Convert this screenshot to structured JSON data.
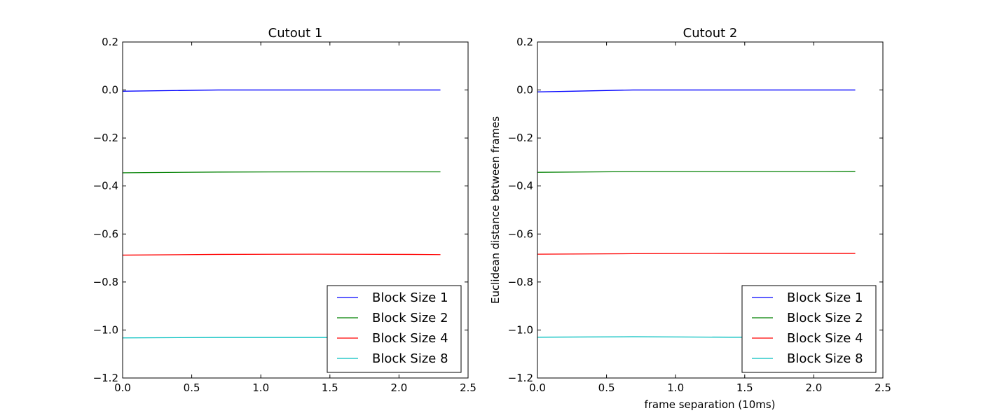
{
  "figure": {
    "xlabel": "frame separation (10ms)",
    "ylabel": "Euclidean distance between frames"
  },
  "chart_data": [
    {
      "type": "line",
      "title": "Cutout 1",
      "xlabel": "",
      "ylabel": "",
      "xlim": [
        0.0,
        2.5
      ],
      "ylim": [
        -1.2,
        0.2
      ],
      "xticks": [
        "0.0",
        "0.5",
        "1.0",
        "1.5",
        "2.0",
        "2.5"
      ],
      "yticks": [
        "0.2",
        "0.0",
        "−0.2",
        "−0.4",
        "−0.6",
        "−0.8",
        "−1.0",
        "−1.2"
      ],
      "grid": false,
      "legend": "lower-right",
      "x": [
        0.0,
        0.69,
        1.39,
        2.08,
        2.3
      ],
      "series": [
        {
          "name": "Block Size 1",
          "color": "#0000ff",
          "values": [
            -0.005,
            0.0,
            0.0,
            0.0,
            0.0
          ]
        },
        {
          "name": "Block Size 2",
          "color": "#008000",
          "values": [
            -0.345,
            -0.342,
            -0.341,
            -0.341,
            -0.341
          ]
        },
        {
          "name": "Block Size 4",
          "color": "#ff0000",
          "values": [
            -0.688,
            -0.685,
            -0.684,
            -0.685,
            -0.686
          ]
        },
        {
          "name": "Block Size 8",
          "color": "#00bfbf",
          "values": [
            -1.033,
            -1.031,
            -1.031,
            -1.031,
            -1.031
          ]
        }
      ]
    },
    {
      "type": "line",
      "title": "Cutout 2",
      "xlabel": "frame separation (10ms)",
      "ylabel": "Euclidean distance between frames",
      "xlim": [
        0.0,
        2.5
      ],
      "ylim": [
        -1.2,
        0.2
      ],
      "xticks": [
        "0.0",
        "0.5",
        "1.0",
        "1.5",
        "2.0",
        "2.5"
      ],
      "yticks": [
        "0.2",
        "0.0",
        "−0.2",
        "−0.4",
        "−0.6",
        "−0.8",
        "−1.0",
        "−1.2"
      ],
      "grid": false,
      "legend": "lower-right",
      "x": [
        0.0,
        0.69,
        1.39,
        2.08,
        2.3
      ],
      "series": [
        {
          "name": "Block Size 1",
          "color": "#0000ff",
          "values": [
            -0.008,
            0.0,
            0.0,
            0.0,
            0.0
          ]
        },
        {
          "name": "Block Size 2",
          "color": "#008000",
          "values": [
            -0.343,
            -0.34,
            -0.34,
            -0.34,
            -0.339
          ]
        },
        {
          "name": "Block Size 4",
          "color": "#ff0000",
          "values": [
            -0.684,
            -0.682,
            -0.681,
            -0.681,
            -0.681
          ]
        },
        {
          "name": "Block Size 8",
          "color": "#00bfbf",
          "values": [
            -1.03,
            -1.028,
            -1.03,
            -1.03,
            -1.03
          ]
        }
      ]
    }
  ]
}
